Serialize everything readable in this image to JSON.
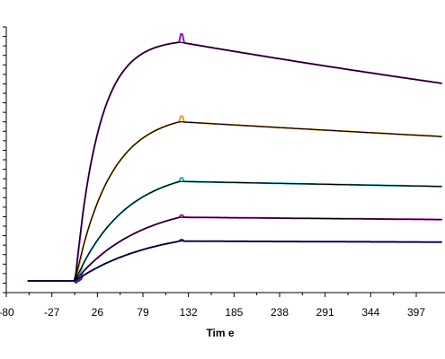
{
  "chart_data": {
    "type": "line",
    "xlabel": "Tim e",
    "ylabel": "",
    "xlim": [
      -80,
      428
    ],
    "ylim": [
      -3,
      145
    ],
    "x_ticks": [
      -80,
      -27,
      26,
      79,
      132,
      185,
      238,
      291,
      344,
      397
    ],
    "y_ticks_count": 29,
    "legend": "none",
    "grid": false,
    "colors": {
      "fit": "#000000",
      "series": [
        "#9a1ab8",
        "#e0a030",
        "#19b5b5",
        "#b01ab8",
        "#2a1ab8"
      ]
    },
    "params": {
      "baseline_start": -55,
      "injection_start": 0,
      "injection_end": 122,
      "x_end": 428,
      "ka_rate": [
        0.036,
        0.024,
        0.017,
        0.013,
        0.011
      ],
      "kd_rate": [
        0.00062,
        0.00032,
        0.00017,
        0.00012,
        8e-05
      ],
      "peak_response": [
        120,
        80,
        50,
        32,
        20
      ]
    },
    "series": [
      {
        "peak": 120,
        "end": 100
      },
      {
        "peak": 80,
        "end": 71
      },
      {
        "peak": 50,
        "end": 47
      },
      {
        "peak": 32,
        "end": 30.6
      },
      {
        "peak": 20,
        "end": 19.4
      }
    ]
  }
}
